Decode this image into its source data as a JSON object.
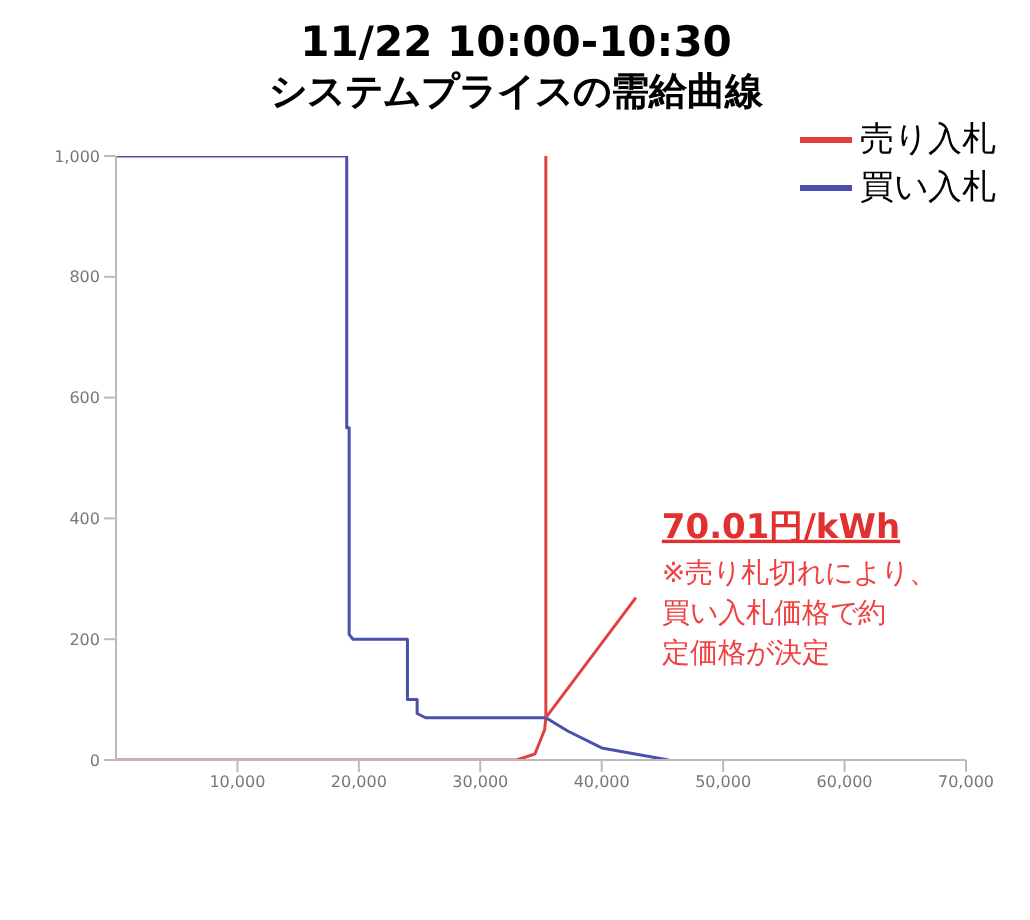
{
  "chart_data": {
    "type": "line",
    "title": "11/22 10:00-10:30",
    "subtitle": "システムプライスの需給曲線",
    "series": [
      {
        "name": "売り入札",
        "color": "#e04040",
        "x": [
          0,
          33000,
          34500,
          35300,
          35400,
          35400
        ],
        "values": [
          0,
          0,
          10,
          50,
          70,
          1000
        ]
      },
      {
        "name": "買い入札",
        "color": "#4a4fb0",
        "x": [
          0,
          19000,
          19000,
          19200,
          19200,
          19500,
          24000,
          24000,
          24800,
          24800,
          25500,
          35400,
          37200,
          40000,
          45500
        ],
        "values": [
          1000,
          1000,
          550,
          550,
          208,
          200,
          200,
          100,
          100,
          77,
          70,
          70,
          48,
          20,
          0
        ]
      }
    ],
    "xlim": [
      0,
      70000
    ],
    "xticks": [
      {
        "value": 10000,
        "label": "10,000"
      },
      {
        "value": 20000,
        "label": "20,000"
      },
      {
        "value": 30000,
        "label": "30,000"
      },
      {
        "value": 40000,
        "label": "40,000"
      },
      {
        "value": 50000,
        "label": "50,000"
      },
      {
        "value": 60000,
        "label": "60,000"
      },
      {
        "value": 70000,
        "label": "70,000"
      }
    ],
    "ylim": [
      0,
      1000
    ],
    "yticks": [
      0,
      200,
      400,
      600,
      800,
      {
        "value": 1000,
        "label": "1,000"
      }
    ],
    "annotations": [
      "70.01円/kWh",
      {
        "text": "※売り札切れにより、買い入札価格で約定価格が決定",
        "x": 35400,
        "y": 70
      }
    ],
    "legend": "top right",
    "grid": false,
    "marker": "none",
    "line_style": "solid"
  }
}
